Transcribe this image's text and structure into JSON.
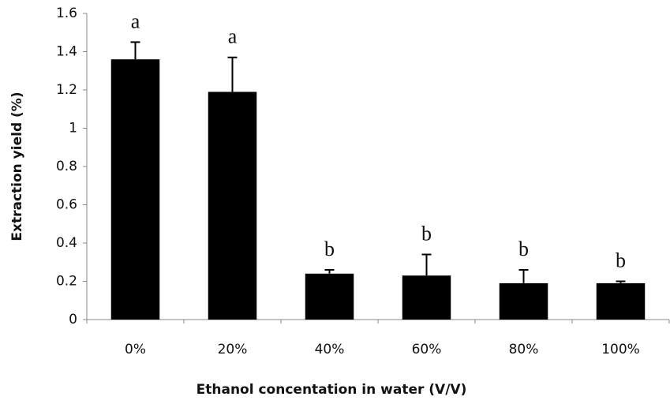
{
  "chart_data": {
    "type": "bar",
    "x_label": "Ethanol concentation in water (V/V)",
    "y_label": "Extraction yield (%)",
    "categories": [
      "0%",
      "20%",
      "40%",
      "60%",
      "80%",
      "100%"
    ],
    "values": [
      1.36,
      1.19,
      0.24,
      0.23,
      0.19,
      0.19
    ],
    "errors": [
      0.09,
      0.18,
      0.02,
      0.11,
      0.07,
      0.01
    ],
    "annotations": [
      "a",
      "a",
      "b",
      "b",
      "b",
      "b"
    ],
    "color": "#000000",
    "ylim": [
      0,
      1.6
    ],
    "yticks": [
      0,
      0.2,
      0.4,
      0.6,
      0.8,
      1,
      1.2,
      1.4,
      1.6
    ]
  }
}
